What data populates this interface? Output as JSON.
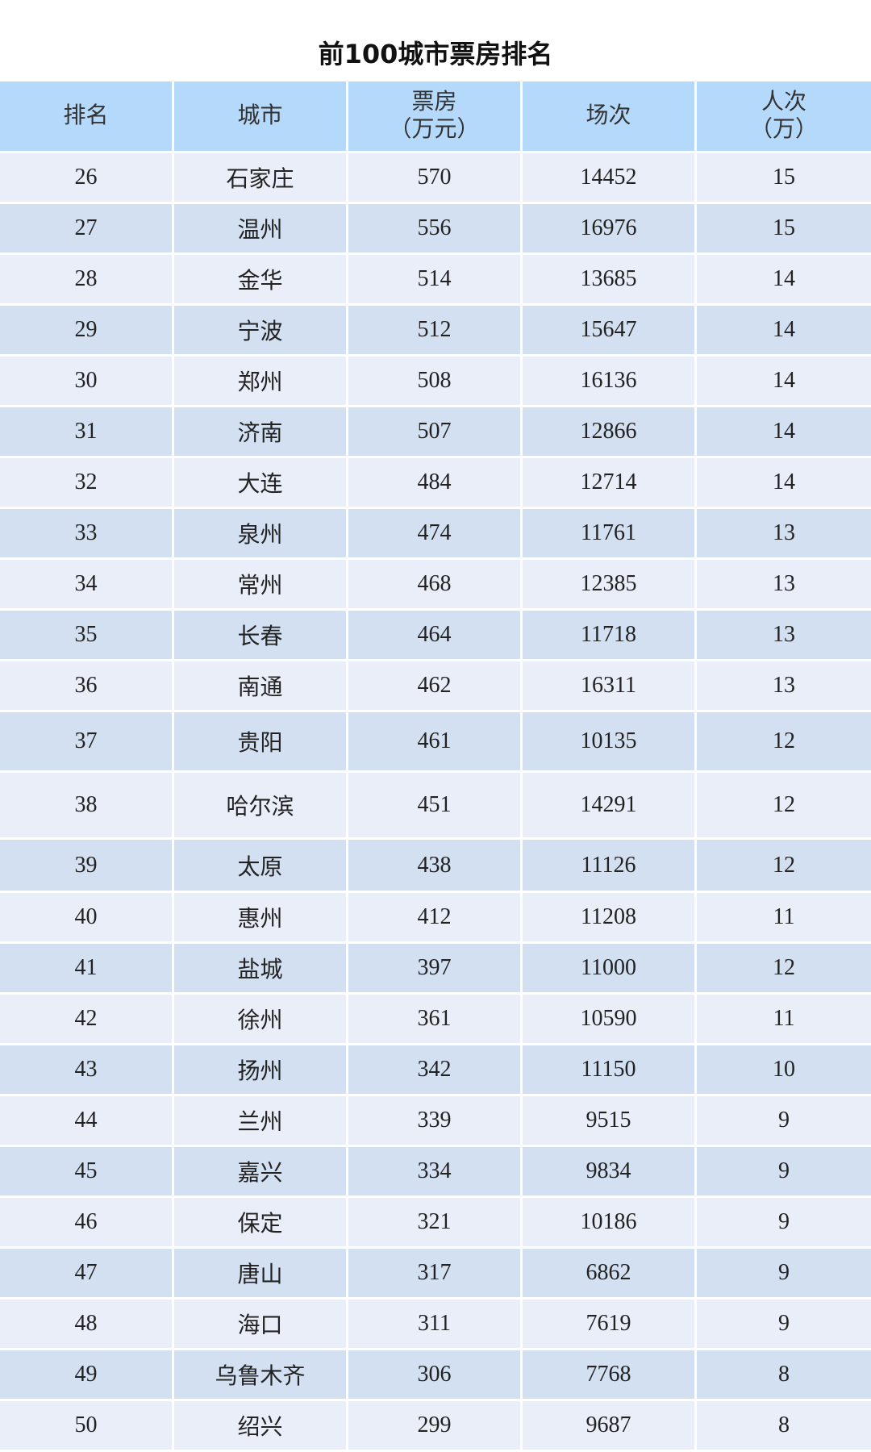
{
  "title": "前100城市票房排名",
  "columns": [
    {
      "line1": "排名",
      "line2": ""
    },
    {
      "line1": "城市",
      "line2": ""
    },
    {
      "line1": "票房",
      "line2": "（万元）"
    },
    {
      "line1": "场次",
      "line2": ""
    },
    {
      "line1": "人次",
      "line2": "（万）"
    }
  ],
  "rows": [
    [
      "26",
      "石家庄",
      "570",
      "14452",
      "15"
    ],
    [
      "27",
      "温州",
      "556",
      "16976",
      "15"
    ],
    [
      "28",
      "金华",
      "514",
      "13685",
      "14"
    ],
    [
      "29",
      "宁波",
      "512",
      "15647",
      "14"
    ],
    [
      "30",
      "郑州",
      "508",
      "16136",
      "14"
    ],
    [
      "31",
      "济南",
      "507",
      "12866",
      "14"
    ],
    [
      "32",
      "大连",
      "484",
      "12714",
      "14"
    ],
    [
      "33",
      "泉州",
      "474",
      "11761",
      "13"
    ],
    [
      "34",
      "常州",
      "468",
      "12385",
      "13"
    ],
    [
      "35",
      "长春",
      "464",
      "11718",
      "13"
    ],
    [
      "36",
      "南通",
      "462",
      "16311",
      "13"
    ],
    [
      "37",
      "贵阳",
      "461",
      "10135",
      "12"
    ],
    [
      "38",
      "哈尔滨",
      "451",
      "14291",
      "12"
    ],
    [
      "39",
      "太原",
      "438",
      "11126",
      "12"
    ],
    [
      "40",
      "惠州",
      "412",
      "11208",
      "11"
    ],
    [
      "41",
      "盐城",
      "397",
      "11000",
      "12"
    ],
    [
      "42",
      "徐州",
      "361",
      "10590",
      "11"
    ],
    [
      "43",
      "扬州",
      "342",
      "11150",
      "10"
    ],
    [
      "44",
      "兰州",
      "339",
      "9515",
      "9"
    ],
    [
      "45",
      "嘉兴",
      "334",
      "9834",
      "9"
    ],
    [
      "46",
      "保定",
      "321",
      "10186",
      "9"
    ],
    [
      "47",
      "唐山",
      "317",
      "6862",
      "9"
    ],
    [
      "48",
      "海口",
      "311",
      "7619",
      "9"
    ],
    [
      "49",
      "乌鲁木齐",
      "306",
      "7768",
      "8"
    ],
    [
      "50",
      "绍兴",
      "299",
      "9687",
      "8"
    ]
  ],
  "colors": {
    "header": "#b5d9fa",
    "row_odd": "#e9eef9",
    "row_even": "#d3e0f1"
  }
}
